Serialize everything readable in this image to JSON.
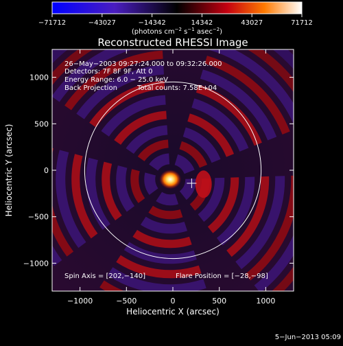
{
  "chart_data": {
    "type": "heatmap",
    "title": "Reconstructed RHESSI Image",
    "xlabel": "Heliocentric X (arcsec)",
    "ylabel": "Heliocentric Y (arcsec)",
    "xlim": [
      -1300,
      1300
    ],
    "ylim": [
      -1300,
      1300
    ],
    "xticks": [
      -1000,
      -500,
      0,
      500,
      1000
    ],
    "yticks": [
      -1000,
      -500,
      0,
      500,
      1000
    ],
    "xtick_labels": [
      "−1000",
      "−500",
      "0",
      "500",
      "1000"
    ],
    "ytick_labels": [
      "−1000",
      "−500",
      "0",
      "500",
      "1000"
    ],
    "colorbar": {
      "min": -71712,
      "max": 71712,
      "ticks": [
        -71712,
        -43027,
        -14342,
        14342,
        43027,
        71712
      ],
      "tick_labels": [
        "−71712",
        "−43027",
        "−14342",
        "14342",
        "43027",
        "71712"
      ],
      "unit_prefix": "(photons cm",
      "unit_exp1": "−2",
      "unit_mid": " s",
      "unit_exp2": "−1",
      "unit_mid2": " asec",
      "unit_exp3": "−2",
      "unit_suffix": ")",
      "colors": [
        "#0000ff",
        "#3b1fb8",
        "#000000",
        "#c40010",
        "#ff8a00",
        "#ffffff"
      ]
    },
    "solar_limb_radius": 950,
    "spin_axis": [
      202,
      -140
    ],
    "flare_position": [
      -28,
      -98
    ],
    "annotations": {
      "time_range": "26−May−2003 09:27:24.000 to 09:32:26.000",
      "detectors": "Detectors: 7F 8F 9F, Att 0",
      "energy": "Energy Range: 6.0 − 25.0 keV",
      "method": "Back Projection",
      "counts": "Total counts: 7.58E+04",
      "spin_axis_label": "Spin Axis = [202,−140]",
      "flare_label": "Flare Position = [−28,−98]"
    }
  },
  "footer_timestamp": "5−Jun−2013 05:09"
}
